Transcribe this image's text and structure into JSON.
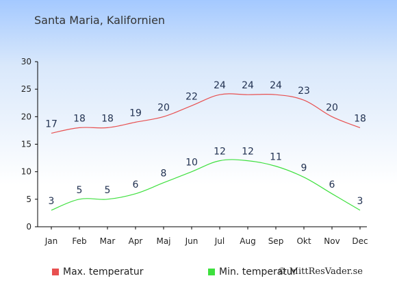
{
  "title": "Santa Maria, Kalifornien",
  "credit": "© MittResVader.se",
  "chart_data": {
    "type": "line",
    "categories": [
      "Jan",
      "Feb",
      "Mar",
      "Apr",
      "Maj",
      "Jun",
      "Jul",
      "Aug",
      "Sep",
      "Okt",
      "Nov",
      "Dec"
    ],
    "ylim": [
      0,
      30
    ],
    "yticks": [
      0,
      5,
      10,
      15,
      20,
      25,
      30
    ],
    "grid": false,
    "legend_position": "bottom",
    "series": [
      {
        "name": "Max. temperatur",
        "color": "#e85050",
        "values": [
          17,
          18,
          18,
          19,
          20,
          22,
          24,
          24,
          24,
          23,
          20,
          18
        ]
      },
      {
        "name": "Min. temperatur",
        "color": "#3ee03e",
        "values": [
          3,
          5,
          5,
          6,
          8,
          10,
          12,
          12,
          11,
          9,
          6,
          3
        ]
      }
    ]
  }
}
